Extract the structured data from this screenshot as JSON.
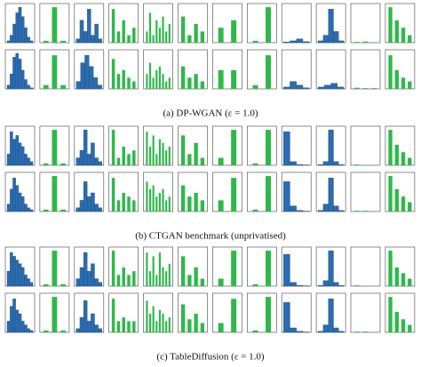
{
  "figure": {
    "colors": {
      "hist": "#2b6cb0",
      "bar": "#2fb84a"
    },
    "ylim": [
      0,
      1
    ],
    "panels": [
      {
        "caption": "(a) DP-WGAN (ε = 1.0)",
        "rows": [
          [
            {
              "kind": "hist",
              "values": [
                0.05,
                0.2,
                0.5,
                0.8,
                0.95,
                0.7,
                0.4,
                0.15,
                0.05
              ]
            },
            {
              "kind": "bar",
              "values": [
                0.05,
                0.95,
                0.05
              ]
            },
            {
              "kind": "hist",
              "values": [
                0.1,
                0.6,
                0.3,
                0.9,
                0.2,
                0.5,
                0.1
              ]
            },
            {
              "kind": "bar",
              "values": [
                0.9,
                0.3,
                0.6,
                0.2,
                0.4
              ]
            },
            {
              "kind": "bar",
              "values": [
                0.3,
                0.8,
                0.2,
                0.6,
                0.4,
                0.7,
                0.3,
                0.5
              ]
            },
            {
              "kind": "bar",
              "values": [
                0.7,
                0.2,
                0.5,
                0.3
              ]
            },
            {
              "kind": "bar",
              "values": [
                0.4,
                0.6
              ]
            },
            {
              "kind": "bar",
              "values": [
                0.05,
                0.95
              ]
            },
            {
              "kind": "hist",
              "values": [
                0.02,
                0.05,
                0.1,
                0.03
              ]
            },
            {
              "kind": "hist",
              "values": [
                0.05,
                0.2,
                0.9,
                0.3,
                0.05
              ]
            },
            {
              "kind": "bar",
              "values": [
                0.02,
                0.03,
                0.01
              ]
            },
            {
              "kind": "bar",
              "values": [
                0.95,
                0.6,
                0.4,
                0.2
              ]
            }
          ],
          [
            {
              "kind": "hist",
              "values": [
                0.1,
                0.4,
                0.85,
                0.95,
                0.8,
                0.5,
                0.25,
                0.1,
                0.03
              ]
            },
            {
              "kind": "bar",
              "values": [
                0.1,
                0.9,
                0.1
              ]
            },
            {
              "kind": "hist",
              "values": [
                0.2,
                0.7,
                0.9,
                0.6,
                0.3,
                0.1
              ]
            },
            {
              "kind": "bar",
              "values": [
                0.8,
                0.4,
                0.5,
                0.3,
                0.2
              ]
            },
            {
              "kind": "bar",
              "values": [
                0.4,
                0.7,
                0.3,
                0.5,
                0.6,
                0.4,
                0.2,
                0.3
              ]
            },
            {
              "kind": "bar",
              "values": [
                0.6,
                0.3,
                0.4,
                0.2
              ]
            },
            {
              "kind": "bar",
              "values": [
                0.5,
                0.5
              ]
            },
            {
              "kind": "bar",
              "values": [
                0.1,
                0.9
              ]
            },
            {
              "kind": "hist",
              "values": [
                0.05,
                0.2,
                0.1,
                0.03
              ]
            },
            {
              "kind": "hist",
              "values": [
                0.05,
                0.1,
                0.15,
                0.05
              ]
            },
            {
              "kind": "bar",
              "values": [
                0.03,
                0.02,
                0.02
              ]
            },
            {
              "kind": "bar",
              "values": [
                0.9,
                0.5,
                0.3,
                0.2
              ]
            }
          ]
        ]
      },
      {
        "caption": "(b) CTGAN benchmark (unprivatised)",
        "rows": [
          [
            {
              "kind": "hist",
              "values": [
                0.3,
                0.9,
                0.7,
                0.8,
                0.6,
                0.5,
                0.3,
                0.2,
                0.1
              ]
            },
            {
              "kind": "bar",
              "values": [
                0.05,
                0.95,
                0.05
              ]
            },
            {
              "kind": "hist",
              "values": [
                0.2,
                0.4,
                0.95,
                0.3,
                0.6,
                0.2,
                0.1
              ]
            },
            {
              "kind": "bar",
              "values": [
                0.95,
                0.2,
                0.5,
                0.3,
                0.4
              ]
            },
            {
              "kind": "bar",
              "values": [
                0.9,
                0.5,
                0.8,
                0.3,
                0.7,
                0.6,
                0.4,
                0.5
              ]
            },
            {
              "kind": "bar",
              "values": [
                0.8,
                0.3,
                0.6,
                0.2
              ]
            },
            {
              "kind": "bar",
              "values": [
                0.2,
                0.95
              ]
            },
            {
              "kind": "bar",
              "values": [
                0.05,
                0.95
              ]
            },
            {
              "kind": "hist",
              "values": [
                0.9,
                0.1,
                0.02,
                0.01
              ]
            },
            {
              "kind": "hist",
              "values": [
                0.02,
                0.1,
                0.95,
                0.1,
                0.02
              ]
            },
            {
              "kind": "bar",
              "values": [
                0.02,
                0.01,
                0.01
              ]
            },
            {
              "kind": "bar",
              "values": [
                0.95,
                0.55,
                0.35,
                0.2
              ]
            }
          ],
          [
            {
              "kind": "hist",
              "values": [
                0.2,
                0.6,
                0.9,
                0.7,
                0.5,
                0.4,
                0.2,
                0.1,
                0.05
              ]
            },
            {
              "kind": "bar",
              "values": [
                0.05,
                0.95,
                0.05
              ]
            },
            {
              "kind": "hist",
              "values": [
                0.1,
                0.3,
                0.8,
                0.4,
                0.5,
                0.2,
                0.1
              ]
            },
            {
              "kind": "bar",
              "values": [
                0.9,
                0.3,
                0.5,
                0.4,
                0.3
              ]
            },
            {
              "kind": "bar",
              "values": [
                0.8,
                0.6,
                0.7,
                0.4,
                0.5,
                0.6,
                0.3,
                0.4
              ]
            },
            {
              "kind": "bar",
              "values": [
                0.7,
                0.4,
                0.5,
                0.3
              ]
            },
            {
              "kind": "bar",
              "values": [
                0.3,
                0.9
              ]
            },
            {
              "kind": "bar",
              "values": [
                0.05,
                0.95
              ]
            },
            {
              "kind": "hist",
              "values": [
                0.8,
                0.15,
                0.03,
                0.01
              ]
            },
            {
              "kind": "hist",
              "values": [
                0.03,
                0.2,
                0.9,
                0.15,
                0.03
              ]
            },
            {
              "kind": "bar",
              "values": [
                0.02,
                0.02,
                0.01
              ]
            },
            {
              "kind": "bar",
              "values": [
                0.95,
                0.6,
                0.4,
                0.25
              ]
            }
          ]
        ]
      },
      {
        "caption": "(c) TableDiffusion (ε = 1.0)",
        "rows": [
          [
            {
              "kind": "hist",
              "values": [
                0.4,
                0.9,
                0.8,
                0.7,
                0.6,
                0.5,
                0.3,
                0.2,
                0.1
              ]
            },
            {
              "kind": "bar",
              "values": [
                0.05,
                0.95,
                0.05
              ]
            },
            {
              "kind": "hist",
              "values": [
                0.2,
                0.5,
                0.9,
                0.4,
                0.6,
                0.2,
                0.1
              ]
            },
            {
              "kind": "bar",
              "values": [
                0.95,
                0.3,
                0.5,
                0.3,
                0.4
              ]
            },
            {
              "kind": "bar",
              "values": [
                0.9,
                0.4,
                0.8,
                0.3,
                0.9,
                0.5,
                0.4,
                0.6
              ]
            },
            {
              "kind": "bar",
              "values": [
                0.8,
                0.3,
                0.5,
                0.2
              ]
            },
            {
              "kind": "bar",
              "values": [
                0.2,
                0.95
              ]
            },
            {
              "kind": "bar",
              "values": [
                0.05,
                0.95
              ]
            },
            {
              "kind": "hist",
              "values": [
                0.85,
                0.1,
                0.02,
                0.01
              ]
            },
            {
              "kind": "hist",
              "values": [
                0.02,
                0.15,
                0.95,
                0.1,
                0.02
              ]
            },
            {
              "kind": "bar",
              "values": [
                0.02,
                0.01,
                0.01
              ]
            },
            {
              "kind": "bar",
              "values": [
                0.95,
                0.5,
                0.35,
                0.2
              ]
            }
          ],
          [
            {
              "kind": "hist",
              "values": [
                0.3,
                0.7,
                0.9,
                0.6,
                0.5,
                0.3,
                0.2,
                0.1,
                0.05
              ]
            },
            {
              "kind": "bar",
              "values": [
                0.05,
                0.95,
                0.05
              ]
            },
            {
              "kind": "hist",
              "values": [
                0.1,
                0.4,
                0.85,
                0.3,
                0.5,
                0.2,
                0.1
              ]
            },
            {
              "kind": "bar",
              "values": [
                0.9,
                0.3,
                0.4,
                0.3,
                0.3
              ]
            },
            {
              "kind": "bar",
              "values": [
                0.85,
                0.5,
                0.7,
                0.3,
                0.6,
                0.5,
                0.3,
                0.4
              ]
            },
            {
              "kind": "bar",
              "values": [
                0.75,
                0.35,
                0.5,
                0.25
              ]
            },
            {
              "kind": "bar",
              "values": [
                0.25,
                0.9
              ]
            },
            {
              "kind": "bar",
              "values": [
                0.05,
                0.95
              ]
            },
            {
              "kind": "hist",
              "values": [
                0.8,
                0.12,
                0.03,
                0.01
              ]
            },
            {
              "kind": "hist",
              "values": [
                0.03,
                0.2,
                0.9,
                0.12,
                0.03
              ]
            },
            {
              "kind": "bar",
              "values": [
                0.02,
                0.02,
                0.01
              ]
            },
            {
              "kind": "bar",
              "values": [
                0.95,
                0.55,
                0.35,
                0.2
              ]
            }
          ]
        ]
      }
    ]
  }
}
